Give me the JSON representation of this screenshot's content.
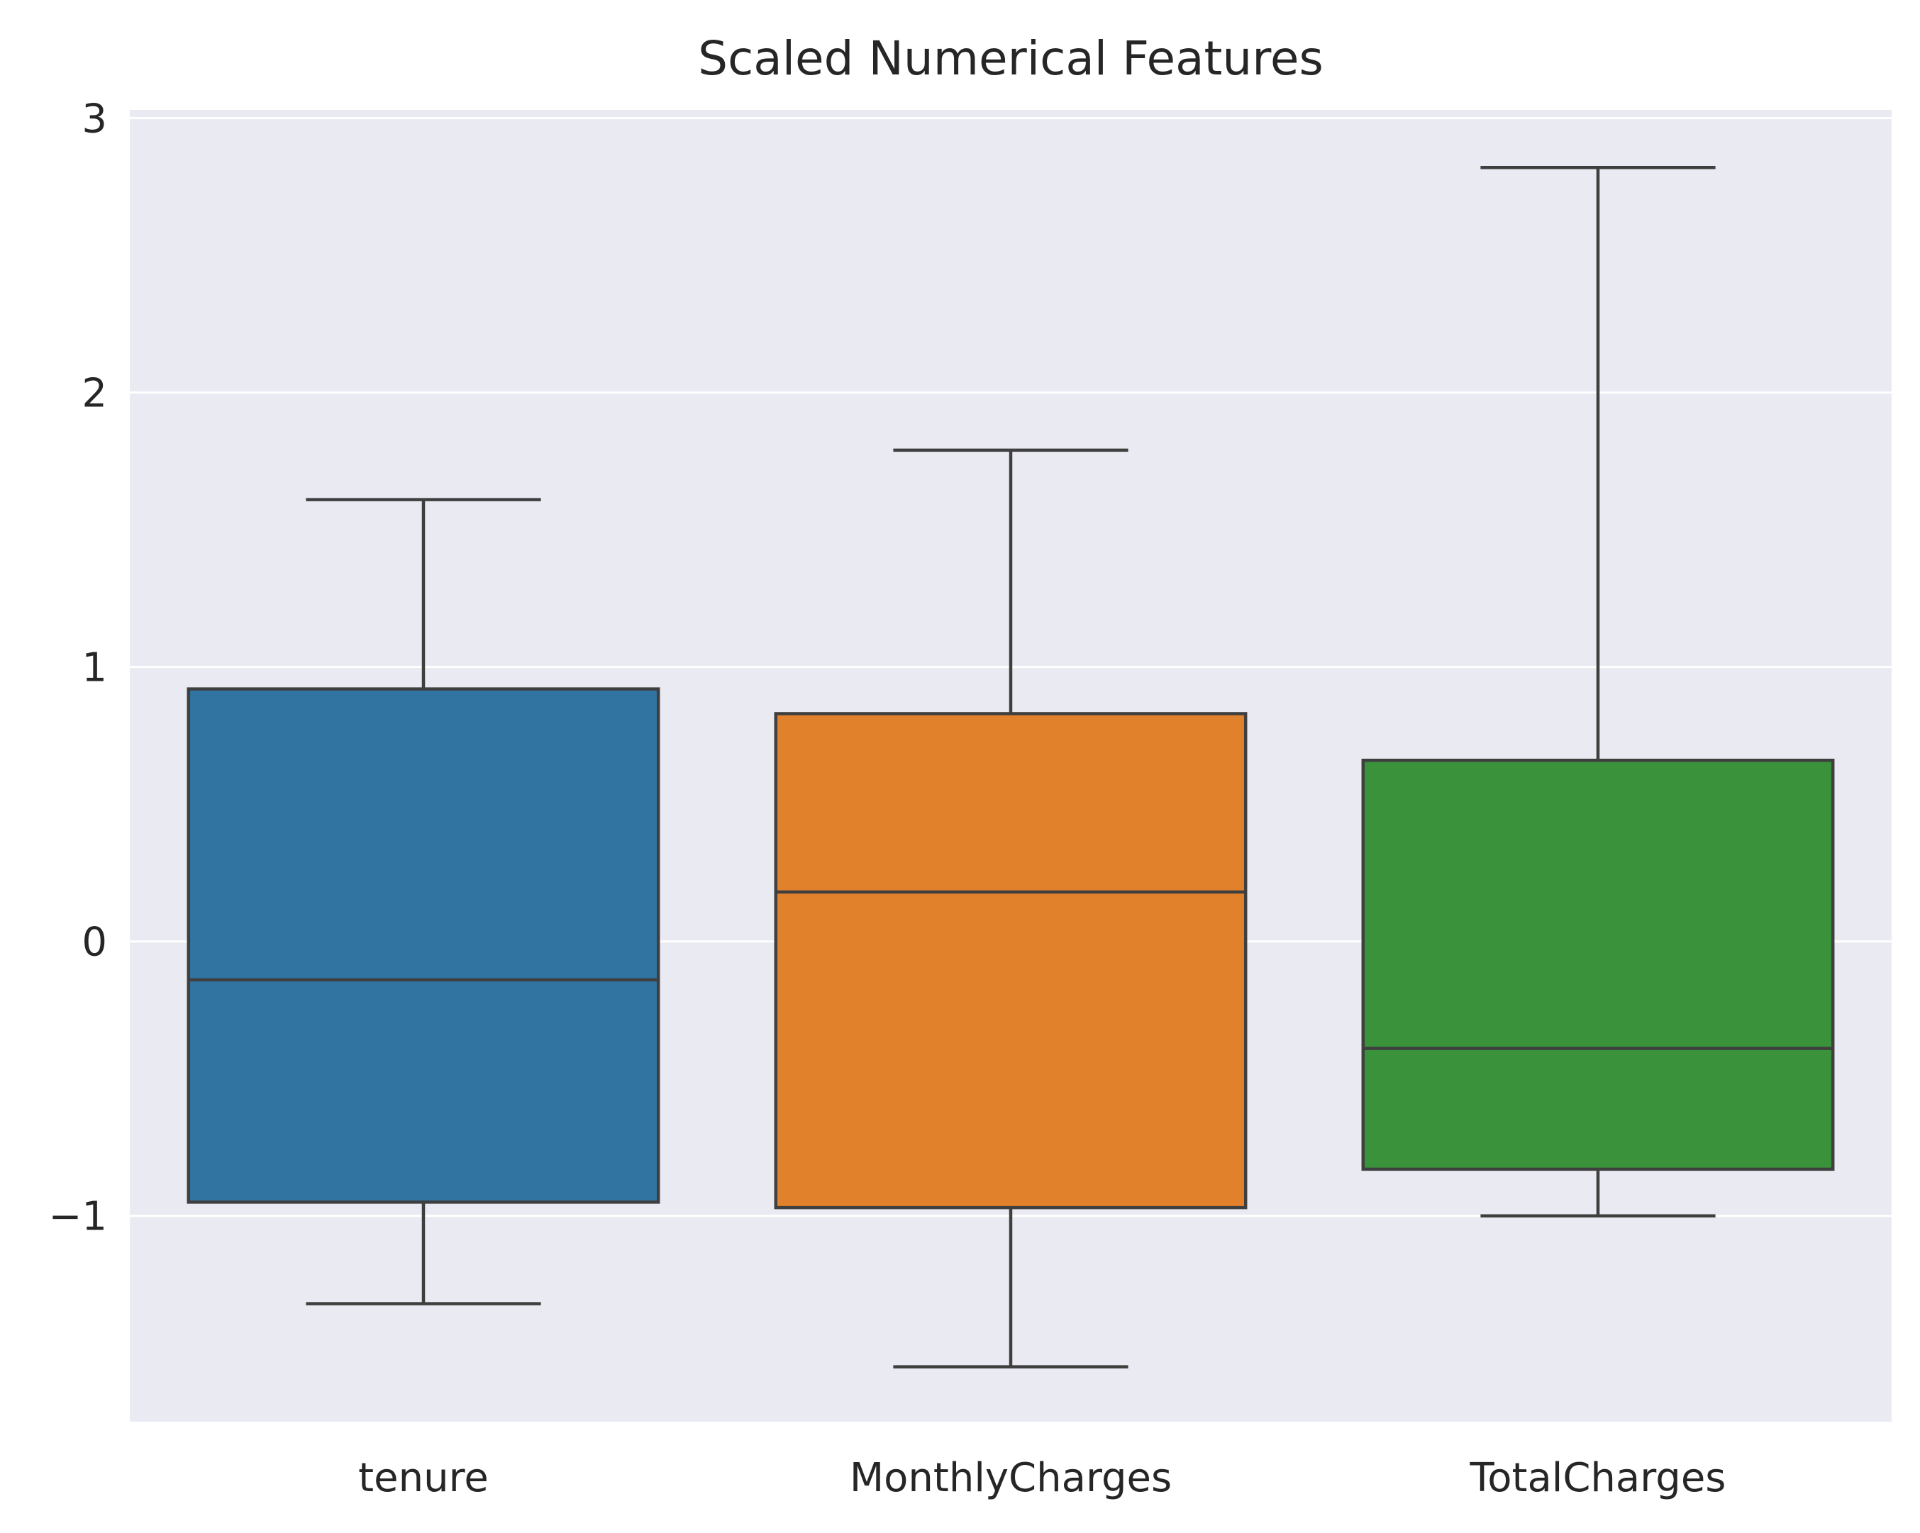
{
  "chart_data": {
    "type": "box",
    "title": "Scaled Numerical Features",
    "xlabel": "",
    "ylabel": "",
    "ylim": [
      -1.75,
      3.03
    ],
    "yticks": [
      -1,
      0,
      1,
      2,
      3
    ],
    "ytick_labels": [
      "−1",
      "0",
      "1",
      "2",
      "3"
    ],
    "grid": true,
    "categories": [
      "tenure",
      "MonthlyCharges",
      "TotalCharges"
    ],
    "boxes": [
      {
        "name": "tenure",
        "whisker_low": -1.32,
        "q1": -0.95,
        "median": -0.14,
        "q3": 0.92,
        "whisker_high": 1.61
      },
      {
        "name": "MonthlyCharges",
        "whisker_low": -1.55,
        "q1": -0.97,
        "median": 0.18,
        "q3": 0.83,
        "whisker_high": 1.79
      },
      {
        "name": "TotalCharges",
        "whisker_low": -1.0,
        "q1": -0.83,
        "median": -0.39,
        "q3": 0.66,
        "whisker_high": 2.82
      }
    ],
    "colors": {
      "plot_background": "#eaeaf2",
      "grid": "#ffffff",
      "edge": "#3f3f3f",
      "boxes": [
        "#3274a1",
        "#e1812c",
        "#3a923a"
      ]
    }
  }
}
